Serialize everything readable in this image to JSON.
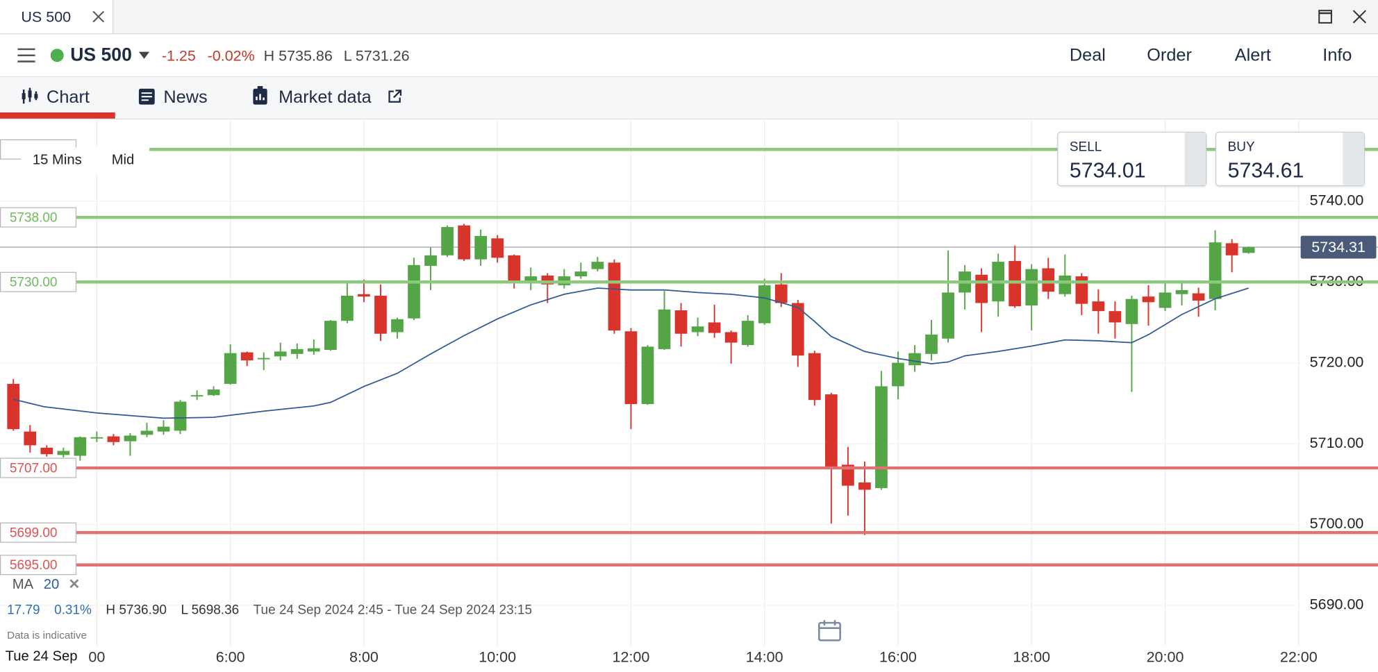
{
  "window": {
    "tab": "US 500"
  },
  "header": {
    "instrument": "US 500",
    "change": "-1.25",
    "change_pct": "-0.02%",
    "high": "H 5735.86",
    "low": "L 5731.26",
    "actions": [
      "Deal",
      "Order",
      "Alert",
      "Info"
    ]
  },
  "tabs": [
    "Chart",
    "News",
    "Market data"
  ],
  "controls": {
    "timeframe": "15 Mins",
    "price_type": "Mid"
  },
  "quote": {
    "sell_label": "SELL",
    "sell": "5734.01",
    "buy_label": "BUY",
    "buy": "5734.61"
  },
  "indicator": {
    "name": "MA",
    "period": "20"
  },
  "summary": {
    "change": "17.79",
    "change_pct": "0.31%",
    "high": "H 5736.90",
    "low": "L 5698.36",
    "range": "Tue 24 Sep 2024 2:45 - Tue 24 Sep 2024 23:15",
    "note": "Data is indicative"
  },
  "chart_data": {
    "type": "candlestick",
    "x": [
      2.75,
      3,
      3.25,
      3.5,
      3.75,
      4,
      4.25,
      4.5,
      4.75,
      5,
      5.25,
      5.5,
      5.75,
      6,
      6.25,
      6.5,
      6.75,
      7,
      7.25,
      7.5,
      7.75,
      8,
      8.25,
      8.5,
      8.75,
      9,
      9.25,
      9.5,
      9.75,
      10,
      10.25,
      10.5,
      10.75,
      11,
      11.25,
      11.5,
      11.75,
      12,
      12.25,
      12.5,
      12.75,
      13,
      13.25,
      13.5,
      13.75,
      14,
      14.25,
      14.5,
      14.75,
      15,
      15.25,
      15.5,
      15.75,
      16,
      16.25,
      16.5,
      16.75,
      17,
      17.25,
      17.5,
      17.75,
      18,
      18.25,
      18.5,
      18.75,
      19,
      19.25,
      19.5,
      19.75,
      20,
      20.25,
      20.5,
      20.75,
      21,
      21.25
    ],
    "open": [
      5717.4,
      5711.5,
      5709.5,
      5708.6,
      5708.5,
      5710.7,
      5710.9,
      5710.3,
      5711.1,
      5711.5,
      5711.6,
      5716,
      5716,
      5717.4,
      5721.3,
      5720.5,
      5720.8,
      5721.1,
      5721.4,
      5721.6,
      5725.2,
      5728.5,
      5728.3,
      5723.8,
      5725.5,
      5732,
      5733.3,
      5737,
      5732.8,
      5735.4,
      5733.3,
      5730,
      5730.8,
      5729.6,
      5730.7,
      5731.6,
      5732.4,
      5723.9,
      5714.9,
      5721.7,
      5726.5,
      5723.8,
      5725,
      5723.8,
      5722.2,
      5724.9,
      5729.7,
      5727.4,
      5721.2,
      5716.1,
      5707.4,
      5705.2,
      5704.5,
      5717.1,
      5719.7,
      5721.1,
      5723,
      5728.7,
      5730.9,
      5727.6,
      5732.6,
      5727.1,
      5731.7,
      5728.5,
      5730.7,
      5727.6,
      5726.4,
      5724.8,
      5728.2,
      5726.8,
      5728.5,
      5728.6,
      5727.9,
      5734.8,
      5733.6
    ],
    "high": [
      5718,
      5712.3,
      5709.8,
      5709.5,
      5710.9,
      5711.5,
      5711.2,
      5711.3,
      5712.6,
      5712.9,
      5715.4,
      5716.6,
      5717.1,
      5722.3,
      5721.4,
      5721.3,
      5722.5,
      5722.4,
      5722.9,
      5725.3,
      5730.1,
      5730.3,
      5729.7,
      5725.6,
      5733,
      5734.3,
      5737,
      5737.2,
      5736.5,
      5735.8,
      5733.4,
      5731.8,
      5731.1,
      5731.6,
      5732.4,
      5733.1,
      5732.8,
      5724.3,
      5722.2,
      5728.9,
      5727.4,
      5725.6,
      5727.2,
      5724,
      5725.9,
      5730.4,
      5731.1,
      5727.8,
      5721.5,
      5716.3,
      5709.6,
      5707.8,
      5719,
      5721.4,
      5722.2,
      5725.3,
      5733.9,
      5732.1,
      5731.7,
      5733.5,
      5734.5,
      5732.2,
      5733,
      5733.4,
      5731.1,
      5729.1,
      5727.6,
      5728.3,
      5729.6,
      5730.1,
      5730.1,
      5729.3,
      5736.4,
      5735.3,
      5734.4
    ],
    "low": [
      5711.6,
      5708.9,
      5708.4,
      5708.3,
      5707.9,
      5710.2,
      5709.8,
      5708.5,
      5710.8,
      5711.1,
      5711.2,
      5715.4,
      5715.9,
      5717.3,
      5719.6,
      5719.1,
      5720.3,
      5720.5,
      5721,
      5721.5,
      5724.9,
      5727.5,
      5722.7,
      5723,
      5725.3,
      5729,
      5733.1,
      5732.6,
      5732,
      5732.4,
      5729.2,
      5729,
      5727.4,
      5729.2,
      5730.4,
      5731.3,
      5723.6,
      5711.8,
      5714.8,
      5721.6,
      5722,
      5723.3,
      5723.1,
      5719.9,
      5722,
      5724.7,
      5726.9,
      5719.5,
      5714.7,
      5700.1,
      5701.1,
      5698.7,
      5704.3,
      5715.5,
      5718.9,
      5720.3,
      5722.5,
      5726.6,
      5723.8,
      5725.7,
      5726.8,
      5724,
      5727.9,
      5728.2,
      5725.9,
      5723.6,
      5723,
      5716.4,
      5724.6,
      5726.4,
      5727.1,
      5725.7,
      5726.5,
      5731.2,
      5733.5
    ],
    "close": [
      5711.8,
      5709.8,
      5708.7,
      5709.1,
      5710.8,
      5710.8,
      5710.2,
      5711,
      5711.6,
      5712.1,
      5715.2,
      5716,
      5716.7,
      5721.2,
      5720.3,
      5720.6,
      5721.4,
      5721.7,
      5721.8,
      5725.2,
      5728.3,
      5728.2,
      5723.6,
      5725.4,
      5732.1,
      5733.3,
      5736.8,
      5732.8,
      5735.7,
      5733,
      5730.1,
      5730.7,
      5729.7,
      5730.7,
      5731.3,
      5732.5,
      5724,
      5714.9,
      5722,
      5726.6,
      5723.6,
      5724.5,
      5723.7,
      5722.5,
      5725.2,
      5729.6,
      5727.4,
      5720.9,
      5715.4,
      5707.1,
      5704.8,
      5704.3,
      5717.1,
      5720,
      5721.2,
      5723.5,
      5728.7,
      5731.3,
      5727.4,
      5732.5,
      5727,
      5731.6,
      5728.8,
      5730.8,
      5727.3,
      5726.4,
      5725,
      5727.9,
      5727.5,
      5728.7,
      5729,
      5727.7,
      5734.9,
      5733.3,
      5734.3
    ],
    "up_color": "#53a545",
    "down_color": "#d8342c",
    "ma": {
      "color": "#2f5a96",
      "x": [
        2.75,
        3.21,
        4,
        5,
        5.75,
        6.5,
        7.25,
        7.5,
        8,
        8.5,
        9,
        9.5,
        10,
        10.5,
        11,
        11.5,
        12,
        12.5,
        13,
        13.5,
        14,
        14.5,
        14.75,
        15,
        15.5,
        16,
        16.5,
        16.75,
        17,
        17.5,
        18,
        18.5,
        19,
        19.5,
        19.75,
        20.25,
        20.75,
        21.25
      ],
      "values": [
        5715.5,
        5714.57,
        5713.8,
        5713.15,
        5713.26,
        5714.02,
        5714.67,
        5715.11,
        5717.07,
        5718.7,
        5721.09,
        5723.37,
        5725.43,
        5727.17,
        5728.48,
        5729.24,
        5729.02,
        5729.02,
        5728.7,
        5728.48,
        5728.04,
        5726.85,
        5725.11,
        5723.26,
        5721.41,
        5720.54,
        5719.89,
        5720.11,
        5720.87,
        5721.41,
        5722.07,
        5722.83,
        5722.72,
        5722.5,
        5723.48,
        5725.98,
        5727.93,
        5729.24
      ]
    },
    "levels": [
      {
        "value": 5746.4,
        "color": "#8cc97c"
      },
      {
        "value": 5738,
        "label": "5738.00",
        "color": "#8cc97c"
      },
      {
        "value": 5730,
        "label": "5730.00",
        "color": "#8cc97c"
      },
      {
        "value": 5707,
        "label": "5707.00",
        "color": "#e27272"
      },
      {
        "value": 5699,
        "label": "5699.00",
        "color": "#e27272"
      },
      {
        "value": 5695,
        "label": "5695.00",
        "color": "#e27272"
      }
    ],
    "last_price": {
      "value": 5734.31,
      "label": "5734.31"
    },
    "xlim": [
      2.55,
      22.03
    ],
    "ylim": [
      5682.3,
      5750
    ],
    "xticks": [
      {
        "value": 4,
        "label": "00"
      },
      {
        "value": 6,
        "label": "6:00"
      },
      {
        "value": 8,
        "label": "8:00"
      },
      {
        "value": 10,
        "label": "10:00"
      },
      {
        "value": 12,
        "label": "12:00"
      },
      {
        "value": 14,
        "label": "14:00"
      },
      {
        "value": 16,
        "label": "16:00"
      },
      {
        "value": 18,
        "label": "18:00"
      },
      {
        "value": 20,
        "label": "20:00"
      },
      {
        "value": 22,
        "label": "22:00"
      }
    ],
    "yticks": [
      {
        "value": 5690,
        "label": "5690.00"
      },
      {
        "value": 5700,
        "label": "5700.00"
      },
      {
        "value": 5710,
        "label": "5710.00"
      },
      {
        "value": 5720,
        "label": "5720.00"
      },
      {
        "value": 5730,
        "label": "5730.00"
      },
      {
        "value": 5740,
        "label": "5740.00"
      }
    ],
    "grid": true,
    "date_label": "Tue 24 Sep"
  }
}
